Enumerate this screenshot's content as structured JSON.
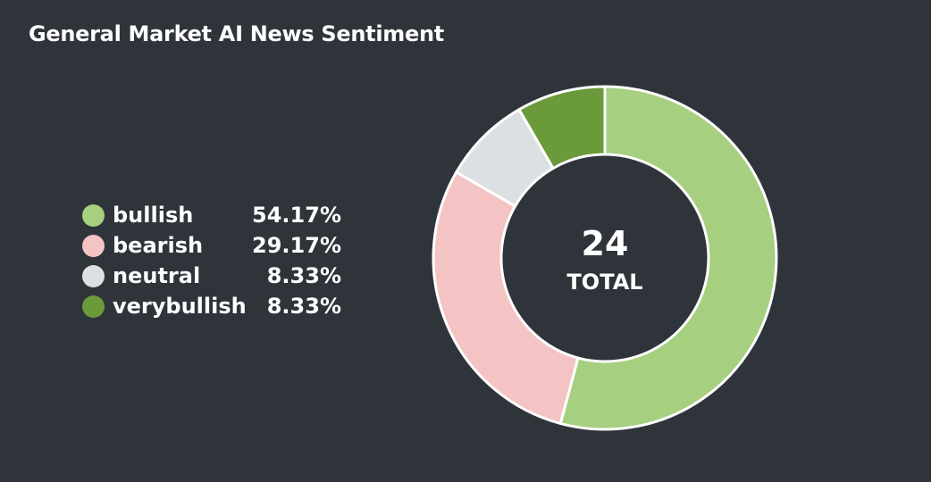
{
  "title": "General Market AI News Sentiment",
  "chart_data": {
    "type": "pie",
    "title": "General Market AI News Sentiment",
    "total": 24,
    "total_label": "TOTAL",
    "slices": [
      {
        "name": "bullish",
        "percent": 54.17,
        "display": "54.17%",
        "color": "#a6cf80"
      },
      {
        "name": "bearish",
        "percent": 29.17,
        "display": "29.17%",
        "color": "#f4c4c4"
      },
      {
        "name": "neutral",
        "percent": 8.33,
        "display": "8.33%",
        "color": "#dde0e2"
      },
      {
        "name": "verybullish",
        "percent": 8.33,
        "display": "8.33%",
        "color": "#6a9a3a"
      }
    ],
    "legend_position": "left"
  }
}
